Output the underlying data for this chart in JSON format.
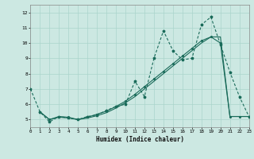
{
  "xlabel": "Humidex (Indice chaleur)",
  "xlim": [
    0,
    23
  ],
  "ylim": [
    4.5,
    12.5
  ],
  "xticks": [
    0,
    1,
    2,
    3,
    4,
    5,
    6,
    7,
    8,
    9,
    10,
    11,
    12,
    13,
    14,
    15,
    16,
    17,
    18,
    19,
    20,
    21,
    22,
    23
  ],
  "yticks": [
    5,
    6,
    7,
    8,
    9,
    10,
    11,
    12
  ],
  "bg_color": "#cce8e2",
  "grid_color": "#aad4cc",
  "line_color": "#1a6b5a",
  "s1_x": [
    0,
    1,
    2,
    3,
    4,
    5,
    6,
    7,
    8,
    9,
    10,
    11,
    12,
    13,
    14,
    15,
    16,
    17,
    18,
    19,
    20,
    21,
    22,
    23
  ],
  "s1_y": [
    7.0,
    5.5,
    4.85,
    5.2,
    5.1,
    5.0,
    5.2,
    5.3,
    5.6,
    5.85,
    6.0,
    7.5,
    6.5,
    9.0,
    10.8,
    9.5,
    8.9,
    9.0,
    11.2,
    11.7,
    9.9,
    8.1,
    6.5,
    5.2
  ],
  "s2_x": [
    1,
    2,
    3,
    4,
    5,
    6,
    7,
    8,
    9,
    10,
    11,
    12,
    13,
    14,
    15,
    16,
    17,
    18,
    19,
    20,
    21,
    22,
    23
  ],
  "s2_y": [
    5.5,
    5.0,
    5.2,
    5.15,
    5.0,
    5.15,
    5.35,
    5.55,
    5.85,
    6.2,
    6.65,
    7.15,
    7.65,
    8.15,
    8.65,
    9.15,
    9.65,
    10.15,
    10.4,
    10.0,
    5.2,
    5.2,
    5.2
  ],
  "s3_x": [
    1,
    2,
    3,
    4,
    5,
    6,
    7,
    8,
    9,
    10,
    11,
    12,
    13,
    14,
    15,
    16,
    17,
    18,
    19,
    20,
    21,
    22,
    23
  ],
  "s3_y": [
    5.5,
    5.0,
    5.15,
    5.1,
    5.0,
    5.1,
    5.25,
    5.45,
    5.75,
    6.1,
    6.5,
    7.0,
    7.5,
    8.0,
    8.5,
    9.0,
    9.5,
    10.0,
    10.4,
    10.4,
    5.2,
    5.2,
    5.2
  ]
}
